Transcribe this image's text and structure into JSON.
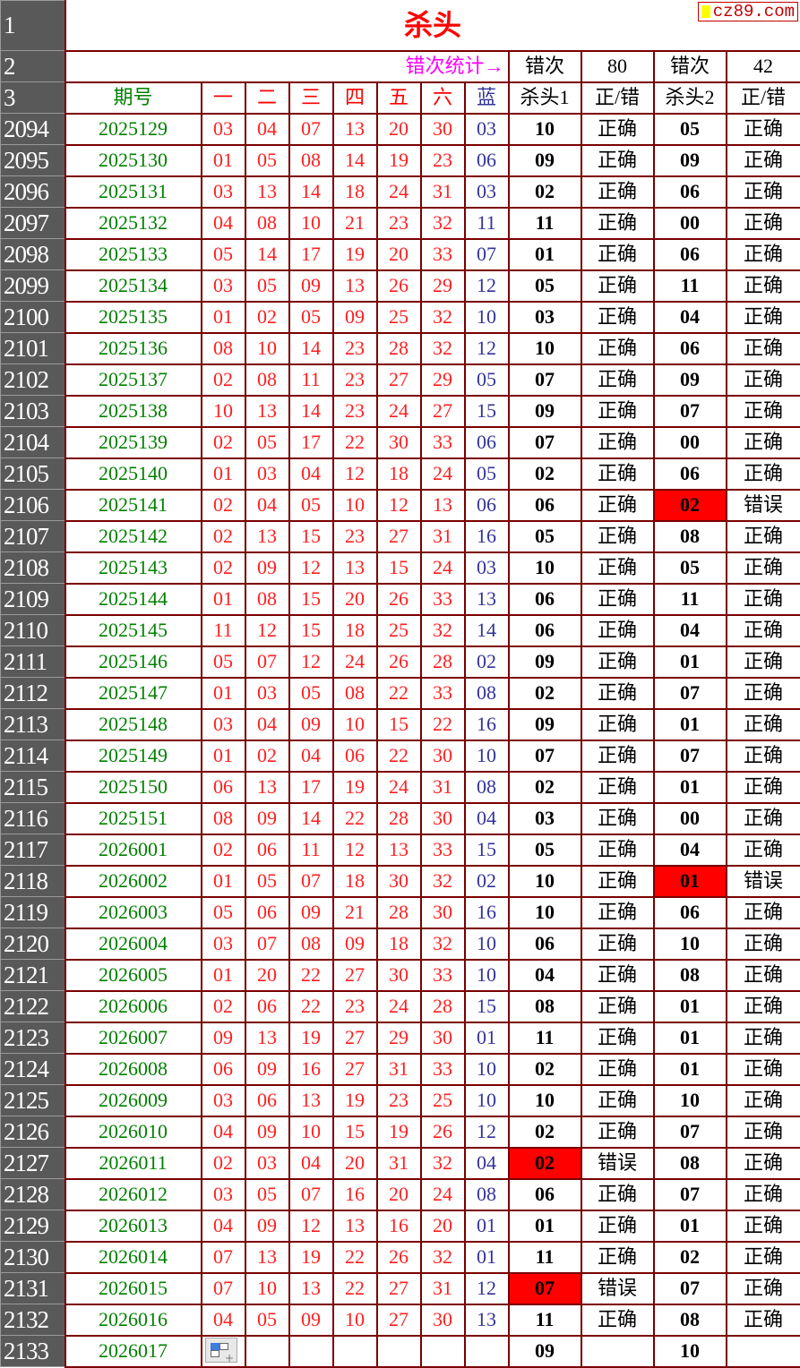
{
  "title": "杀头",
  "logo_text": "cz89.com",
  "stats_row": {
    "row_label": "2",
    "label": "错次统计→",
    "k1_label": "错次",
    "k1_errors": "80",
    "k2_label": "错次",
    "k2_errors": "42"
  },
  "row1_label": "1",
  "header": {
    "row_label": "3",
    "columns": [
      "期号",
      "一",
      "二",
      "三",
      "四",
      "五",
      "六",
      "蓝",
      "杀头1",
      "正/错",
      "杀头2",
      "正/错"
    ]
  },
  "colors": {
    "period": "#008000",
    "numbers": "#ff0000",
    "blue_ball": "#333399",
    "error_fill": "#ff0000",
    "row_header": "#595959",
    "border": "#7a0000"
  },
  "rows": [
    [
      "2094",
      "2025129",
      "03",
      "04",
      "07",
      "13",
      "20",
      "30",
      "03",
      "10",
      "正确",
      "05",
      "正确"
    ],
    [
      "2095",
      "2025130",
      "01",
      "05",
      "08",
      "14",
      "19",
      "23",
      "06",
      "09",
      "正确",
      "09",
      "正确"
    ],
    [
      "2096",
      "2025131",
      "03",
      "13",
      "14",
      "18",
      "24",
      "31",
      "03",
      "02",
      "正确",
      "06",
      "正确"
    ],
    [
      "2097",
      "2025132",
      "04",
      "08",
      "10",
      "21",
      "23",
      "32",
      "11",
      "11",
      "正确",
      "00",
      "正确"
    ],
    [
      "2098",
      "2025133",
      "05",
      "14",
      "17",
      "19",
      "20",
      "33",
      "07",
      "01",
      "正确",
      "06",
      "正确"
    ],
    [
      "2099",
      "2025134",
      "03",
      "05",
      "09",
      "13",
      "26",
      "29",
      "12",
      "05",
      "正确",
      "11",
      "正确"
    ],
    [
      "2100",
      "2025135",
      "01",
      "02",
      "05",
      "09",
      "25",
      "32",
      "10",
      "03",
      "正确",
      "04",
      "正确"
    ],
    [
      "2101",
      "2025136",
      "08",
      "10",
      "14",
      "23",
      "28",
      "32",
      "12",
      "10",
      "正确",
      "06",
      "正确"
    ],
    [
      "2102",
      "2025137",
      "02",
      "08",
      "11",
      "23",
      "27",
      "29",
      "05",
      "07",
      "正确",
      "09",
      "正确"
    ],
    [
      "2103",
      "2025138",
      "10",
      "13",
      "14",
      "23",
      "24",
      "27",
      "15",
      "09",
      "正确",
      "07",
      "正确"
    ],
    [
      "2104",
      "2025139",
      "02",
      "05",
      "17",
      "22",
      "30",
      "33",
      "06",
      "07",
      "正确",
      "00",
      "正确"
    ],
    [
      "2105",
      "2025140",
      "01",
      "03",
      "04",
      "12",
      "18",
      "24",
      "05",
      "02",
      "正确",
      "06",
      "正确"
    ],
    [
      "2106",
      "2025141",
      "02",
      "04",
      "05",
      "10",
      "12",
      "13",
      "06",
      "06",
      "正确",
      "02",
      "错误"
    ],
    [
      "2107",
      "2025142",
      "02",
      "13",
      "15",
      "23",
      "27",
      "31",
      "16",
      "05",
      "正确",
      "08",
      "正确"
    ],
    [
      "2108",
      "2025143",
      "02",
      "09",
      "12",
      "13",
      "15",
      "24",
      "03",
      "10",
      "正确",
      "05",
      "正确"
    ],
    [
      "2109",
      "2025144",
      "01",
      "08",
      "15",
      "20",
      "26",
      "33",
      "13",
      "06",
      "正确",
      "11",
      "正确"
    ],
    [
      "2110",
      "2025145",
      "11",
      "12",
      "15",
      "18",
      "25",
      "32",
      "14",
      "06",
      "正确",
      "04",
      "正确"
    ],
    [
      "2111",
      "2025146",
      "05",
      "07",
      "12",
      "24",
      "26",
      "28",
      "02",
      "09",
      "正确",
      "01",
      "正确"
    ],
    [
      "2112",
      "2025147",
      "01",
      "03",
      "05",
      "08",
      "22",
      "33",
      "08",
      "02",
      "正确",
      "07",
      "正确"
    ],
    [
      "2113",
      "2025148",
      "03",
      "04",
      "09",
      "10",
      "15",
      "22",
      "16",
      "09",
      "正确",
      "01",
      "正确"
    ],
    [
      "2114",
      "2025149",
      "01",
      "02",
      "04",
      "06",
      "22",
      "30",
      "10",
      "07",
      "正确",
      "07",
      "正确"
    ],
    [
      "2115",
      "2025150",
      "06",
      "13",
      "17",
      "19",
      "24",
      "31",
      "08",
      "02",
      "正确",
      "01",
      "正确"
    ],
    [
      "2116",
      "2025151",
      "08",
      "09",
      "14",
      "22",
      "28",
      "30",
      "04",
      "03",
      "正确",
      "00",
      "正确"
    ],
    [
      "2117",
      "2026001",
      "02",
      "06",
      "11",
      "12",
      "13",
      "33",
      "15",
      "05",
      "正确",
      "04",
      "正确"
    ],
    [
      "2118",
      "2026002",
      "01",
      "05",
      "07",
      "18",
      "30",
      "32",
      "02",
      "10",
      "正确",
      "01",
      "错误"
    ],
    [
      "2119",
      "2026003",
      "05",
      "06",
      "09",
      "21",
      "28",
      "30",
      "16",
      "10",
      "正确",
      "06",
      "正确"
    ],
    [
      "2120",
      "2026004",
      "03",
      "07",
      "08",
      "09",
      "18",
      "32",
      "10",
      "06",
      "正确",
      "10",
      "正确"
    ],
    [
      "2121",
      "2026005",
      "01",
      "20",
      "22",
      "27",
      "30",
      "33",
      "10",
      "04",
      "正确",
      "08",
      "正确"
    ],
    [
      "2122",
      "2026006",
      "02",
      "06",
      "22",
      "23",
      "24",
      "28",
      "15",
      "08",
      "正确",
      "01",
      "正确"
    ],
    [
      "2123",
      "2026007",
      "09",
      "13",
      "19",
      "27",
      "29",
      "30",
      "01",
      "11",
      "正确",
      "01",
      "正确"
    ],
    [
      "2124",
      "2026008",
      "06",
      "09",
      "16",
      "27",
      "31",
      "33",
      "10",
      "02",
      "正确",
      "01",
      "正确"
    ],
    [
      "2125",
      "2026009",
      "03",
      "06",
      "13",
      "19",
      "23",
      "25",
      "10",
      "10",
      "正确",
      "10",
      "正确"
    ],
    [
      "2126",
      "2026010",
      "04",
      "09",
      "10",
      "15",
      "19",
      "26",
      "12",
      "02",
      "正确",
      "07",
      "正确"
    ],
    [
      "2127",
      "2026011",
      "02",
      "03",
      "04",
      "20",
      "31",
      "32",
      "04",
      "02",
      "错误",
      "08",
      "正确"
    ],
    [
      "2128",
      "2026012",
      "03",
      "05",
      "07",
      "16",
      "20",
      "24",
      "08",
      "06",
      "正确",
      "07",
      "正确"
    ],
    [
      "2129",
      "2026013",
      "04",
      "09",
      "12",
      "13",
      "16",
      "20",
      "01",
      "01",
      "正确",
      "01",
      "正确"
    ],
    [
      "2130",
      "2026014",
      "07",
      "13",
      "19",
      "22",
      "26",
      "32",
      "01",
      "11",
      "正确",
      "02",
      "正确"
    ],
    [
      "2131",
      "2026015",
      "07",
      "10",
      "13",
      "22",
      "27",
      "31",
      "12",
      "07",
      "错误",
      "07",
      "正确"
    ],
    [
      "2132",
      "2026016",
      "04",
      "05",
      "09",
      "10",
      "27",
      "30",
      "13",
      "11",
      "正确",
      "08",
      "正确"
    ],
    [
      "2133",
      "2026017",
      "",
      "",
      "",
      "",
      "",
      "",
      "",
      "09",
      "",
      "10",
      ""
    ]
  ]
}
